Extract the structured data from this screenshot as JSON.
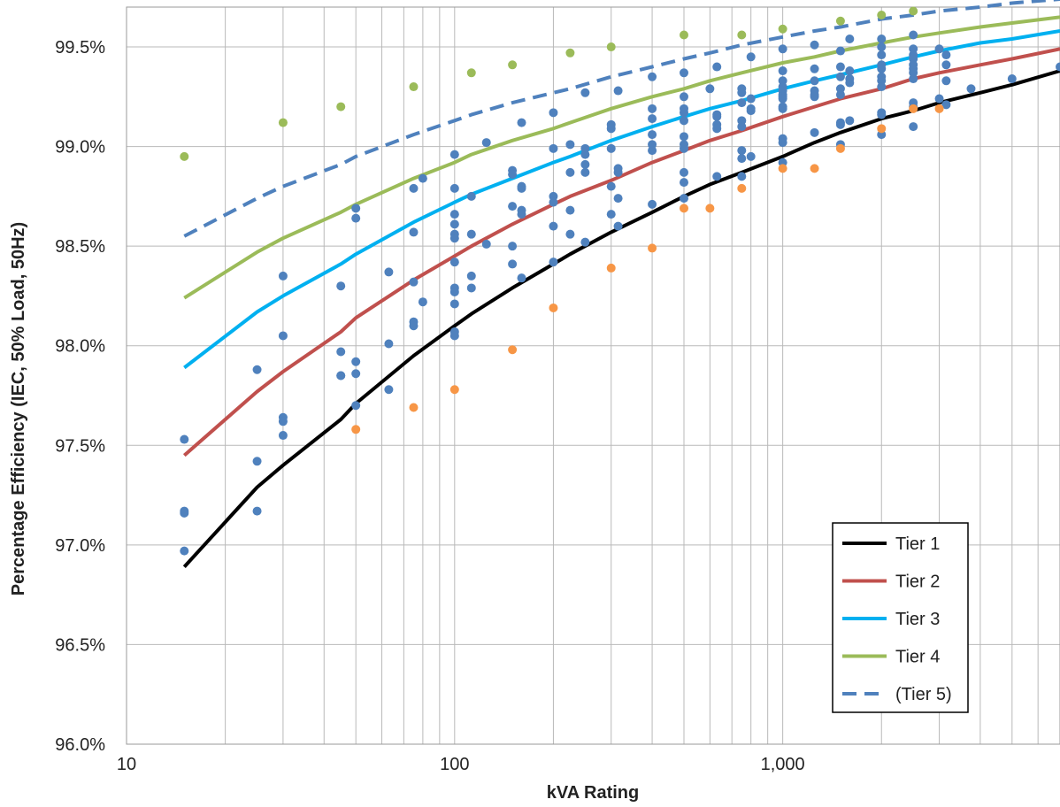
{
  "chart_data": {
    "type": "scatter",
    "xlabel": "kVA Rating",
    "ylabel": "Percentage Efficiency (IEC, 50% Load, 50Hz)",
    "xscale": "log",
    "xlim": [
      10,
      7000
    ],
    "ylim": [
      96.0,
      99.7
    ],
    "grid": "on",
    "legend_position": "bottom-right",
    "x_ticks": [
      10,
      100,
      1000
    ],
    "x_tick_labels": [
      "10",
      "100",
      "1,000"
    ],
    "y_ticks": [
      96.0,
      96.5,
      97.0,
      97.5,
      98.0,
      98.5,
      99.0,
      99.5
    ],
    "y_tick_labels": [
      "96.0%",
      "96.5%",
      "97.0%",
      "97.5%",
      "98.0%",
      "98.5%",
      "99.0%",
      "99.5%"
    ],
    "curve_x": [
      15,
      25,
      30,
      45,
      50,
      75,
      100,
      112.5,
      150,
      200,
      225,
      300,
      400,
      500,
      600,
      750,
      1000,
      1250,
      1500,
      2000,
      2500,
      3000,
      4000,
      5000,
      7000
    ],
    "series": [
      {
        "name": "Tier 1",
        "type": "line",
        "color": "#000000",
        "dash": false,
        "y": [
          96.89,
          97.29,
          97.4,
          97.63,
          97.71,
          97.95,
          98.1,
          98.16,
          98.29,
          98.41,
          98.46,
          98.57,
          98.67,
          98.75,
          98.81,
          98.87,
          98.95,
          99.02,
          99.07,
          99.14,
          99.18,
          99.22,
          99.27,
          99.31,
          99.38
        ]
      },
      {
        "name": "Tier 2",
        "type": "line",
        "color": "#c0504d",
        "dash": false,
        "y": [
          97.45,
          97.77,
          97.87,
          98.07,
          98.14,
          98.33,
          98.45,
          98.5,
          98.61,
          98.71,
          98.75,
          98.83,
          98.92,
          98.98,
          99.03,
          99.08,
          99.15,
          99.2,
          99.24,
          99.29,
          99.34,
          99.37,
          99.41,
          99.44,
          99.49
        ]
      },
      {
        "name": "Tier 3",
        "type": "line",
        "color": "#00b0f0",
        "dash": false,
        "y": [
          97.89,
          98.17,
          98.25,
          98.41,
          98.46,
          98.62,
          98.72,
          98.76,
          98.84,
          98.92,
          98.95,
          99.03,
          99.1,
          99.15,
          99.19,
          99.23,
          99.29,
          99.33,
          99.36,
          99.41,
          99.45,
          99.48,
          99.52,
          99.54,
          99.58
        ]
      },
      {
        "name": "Tier 4",
        "type": "line",
        "color": "#9bbb59",
        "dash": false,
        "y": [
          98.24,
          98.47,
          98.54,
          98.67,
          98.71,
          98.84,
          98.92,
          98.96,
          99.03,
          99.09,
          99.12,
          99.19,
          99.25,
          99.29,
          99.33,
          99.37,
          99.42,
          99.45,
          99.48,
          99.52,
          99.55,
          99.57,
          99.6,
          99.62,
          99.65
        ]
      },
      {
        "name": "(Tier 5)",
        "type": "line",
        "color": "#4f81bd",
        "dash": true,
        "y": [
          98.55,
          98.74,
          98.8,
          98.91,
          98.95,
          99.06,
          99.13,
          99.16,
          99.22,
          99.27,
          99.29,
          99.35,
          99.4,
          99.44,
          99.47,
          99.51,
          99.55,
          99.58,
          99.6,
          99.64,
          99.66,
          99.68,
          99.7,
          99.72,
          99.74
        ]
      }
    ],
    "scatter_series": [
      {
        "color": "#4f81bd",
        "points": [
          [
            15,
            97.53
          ],
          [
            15,
            97.16
          ],
          [
            15,
            97.17
          ],
          [
            15,
            96.97
          ],
          [
            25,
            97.88
          ],
          [
            25,
            97.42
          ],
          [
            25,
            97.17
          ],
          [
            30,
            98.35
          ],
          [
            30,
            98.05
          ],
          [
            30,
            97.64
          ],
          [
            30,
            97.62
          ],
          [
            30,
            97.55
          ],
          [
            45,
            98.3
          ],
          [
            45,
            97.97
          ],
          [
            45,
            97.85
          ],
          [
            45,
            97.85
          ],
          [
            50,
            98.69
          ],
          [
            50,
            98.64
          ],
          [
            50,
            97.92
          ],
          [
            50,
            97.86
          ],
          [
            50,
            97.7
          ],
          [
            63,
            98.37
          ],
          [
            63,
            98.01
          ],
          [
            63,
            97.78
          ],
          [
            75,
            98.79
          ],
          [
            75,
            98.57
          ],
          [
            75,
            98.32
          ],
          [
            75,
            98.12
          ],
          [
            75,
            98.1
          ],
          [
            80,
            98.84
          ],
          [
            80,
            98.22
          ],
          [
            100,
            98.96
          ],
          [
            100,
            98.79
          ],
          [
            100,
            98.66
          ],
          [
            100,
            98.61
          ],
          [
            100,
            98.56
          ],
          [
            100,
            98.54
          ],
          [
            100,
            98.42
          ],
          [
            100,
            98.29
          ],
          [
            100,
            98.27
          ],
          [
            100,
            98.21
          ],
          [
            100,
            98.07
          ],
          [
            100,
            98.05
          ],
          [
            112.5,
            98.75
          ],
          [
            112.5,
            98.56
          ],
          [
            112.5,
            98.35
          ],
          [
            112.5,
            98.29
          ],
          [
            125,
            99.02
          ],
          [
            125,
            98.51
          ],
          [
            150,
            98.88
          ],
          [
            150,
            98.86
          ],
          [
            150,
            98.7
          ],
          [
            150,
            98.5
          ],
          [
            150,
            98.41
          ],
          [
            160,
            99.12
          ],
          [
            160,
            98.8
          ],
          [
            160,
            98.79
          ],
          [
            160,
            98.68
          ],
          [
            160,
            98.66
          ],
          [
            160,
            98.34
          ],
          [
            200,
            99.17
          ],
          [
            200,
            98.99
          ],
          [
            200,
            98.75
          ],
          [
            200,
            98.72
          ],
          [
            200,
            98.6
          ],
          [
            200,
            98.42
          ],
          [
            225,
            99.01
          ],
          [
            225,
            98.87
          ],
          [
            225,
            98.68
          ],
          [
            225,
            98.56
          ],
          [
            250,
            99.27
          ],
          [
            250,
            98.99
          ],
          [
            250,
            98.96
          ],
          [
            250,
            98.91
          ],
          [
            250,
            98.87
          ],
          [
            250,
            98.52
          ],
          [
            300,
            99.11
          ],
          [
            300,
            99.09
          ],
          [
            300,
            98.99
          ],
          [
            300,
            98.8
          ],
          [
            300,
            98.66
          ],
          [
            315,
            99.28
          ],
          [
            315,
            98.89
          ],
          [
            315,
            98.87
          ],
          [
            315,
            98.74
          ],
          [
            315,
            98.6
          ],
          [
            400,
            99.35
          ],
          [
            400,
            99.19
          ],
          [
            400,
            99.14
          ],
          [
            400,
            99.06
          ],
          [
            400,
            99.01
          ],
          [
            400,
            98.98
          ],
          [
            400,
            98.71
          ],
          [
            500,
            99.37
          ],
          [
            500,
            99.25
          ],
          [
            500,
            99.19
          ],
          [
            500,
            99.17
          ],
          [
            500,
            99.13
          ],
          [
            500,
            99.05
          ],
          [
            500,
            99.01
          ],
          [
            500,
            98.99
          ],
          [
            500,
            98.87
          ],
          [
            500,
            98.82
          ],
          [
            500,
            98.74
          ],
          [
            600,
            99.29
          ],
          [
            630,
            99.4
          ],
          [
            630,
            99.16
          ],
          [
            630,
            99.15
          ],
          [
            630,
            99.11
          ],
          [
            630,
            99.09
          ],
          [
            630,
            98.85
          ],
          [
            750,
            99.29
          ],
          [
            750,
            99.27
          ],
          [
            750,
            99.22
          ],
          [
            750,
            99.13
          ],
          [
            750,
            99.1
          ],
          [
            750,
            98.98
          ],
          [
            750,
            98.94
          ],
          [
            750,
            98.85
          ],
          [
            800,
            99.45
          ],
          [
            800,
            99.24
          ],
          [
            800,
            99.19
          ],
          [
            800,
            99.18
          ],
          [
            800,
            98.95
          ],
          [
            1000,
            99.49
          ],
          [
            1000,
            99.38
          ],
          [
            1000,
            99.33
          ],
          [
            1000,
            99.3
          ],
          [
            1000,
            99.28
          ],
          [
            1000,
            99.26
          ],
          [
            1000,
            99.25
          ],
          [
            1000,
            99.24
          ],
          [
            1000,
            99.2
          ],
          [
            1000,
            99.19
          ],
          [
            1000,
            99.04
          ],
          [
            1000,
            99.02
          ],
          [
            1000,
            98.92
          ],
          [
            1250,
            99.51
          ],
          [
            1250,
            99.39
          ],
          [
            1250,
            99.33
          ],
          [
            1250,
            99.28
          ],
          [
            1250,
            99.26
          ],
          [
            1250,
            99.25
          ],
          [
            1250,
            99.07
          ],
          [
            1500,
            99.48
          ],
          [
            1500,
            99.4
          ],
          [
            1500,
            99.35
          ],
          [
            1500,
            99.29
          ],
          [
            1500,
            99.26
          ],
          [
            1500,
            99.12
          ],
          [
            1500,
            99.11
          ],
          [
            1500,
            99.01
          ],
          [
            1600,
            99.54
          ],
          [
            1600,
            99.38
          ],
          [
            1600,
            99.34
          ],
          [
            1600,
            99.32
          ],
          [
            1600,
            99.13
          ],
          [
            2000,
            99.54
          ],
          [
            2000,
            99.5
          ],
          [
            2000,
            99.46
          ],
          [
            2000,
            99.41
          ],
          [
            2000,
            99.39
          ],
          [
            2000,
            99.35
          ],
          [
            2000,
            99.33
          ],
          [
            2000,
            99.3
          ],
          [
            2000,
            99.17
          ],
          [
            2000,
            99.16
          ],
          [
            2000,
            99.06
          ],
          [
            2500,
            99.56
          ],
          [
            2500,
            99.49
          ],
          [
            2500,
            99.46
          ],
          [
            2500,
            99.44
          ],
          [
            2500,
            99.41
          ],
          [
            2500,
            99.39
          ],
          [
            2500,
            99.37
          ],
          [
            2500,
            99.34
          ],
          [
            2500,
            99.22
          ],
          [
            2500,
            99.2
          ],
          [
            2500,
            99.1
          ],
          [
            3000,
            99.49
          ],
          [
            3000,
            99.24
          ],
          [
            3150,
            99.46
          ],
          [
            3150,
            99.41
          ],
          [
            3150,
            99.33
          ],
          [
            3150,
            99.21
          ],
          [
            3750,
            99.29
          ],
          [
            5000,
            99.34
          ],
          [
            7000,
            99.4
          ]
        ]
      },
      {
        "color": "#9bbb59",
        "points": [
          [
            15,
            98.95
          ],
          [
            30,
            99.12
          ],
          [
            45,
            99.2
          ],
          [
            75,
            99.3
          ],
          [
            112.5,
            99.37
          ],
          [
            150,
            99.41
          ],
          [
            225,
            99.47
          ],
          [
            300,
            99.5
          ],
          [
            500,
            99.56
          ],
          [
            750,
            99.56
          ],
          [
            1000,
            99.59
          ],
          [
            1500,
            99.63
          ],
          [
            2000,
            99.66
          ],
          [
            2500,
            99.68
          ]
        ]
      },
      {
        "color": "#f79646",
        "points": [
          [
            50,
            97.58
          ],
          [
            75,
            97.69
          ],
          [
            100,
            97.78
          ],
          [
            150,
            97.98
          ],
          [
            200,
            98.19
          ],
          [
            300,
            98.39
          ],
          [
            400,
            98.49
          ],
          [
            500,
            98.69
          ],
          [
            600,
            98.69
          ],
          [
            750,
            98.79
          ],
          [
            1000,
            98.89
          ],
          [
            1250,
            98.89
          ],
          [
            1500,
            98.99
          ],
          [
            2000,
            99.09
          ],
          [
            2500,
            99.19
          ],
          [
            3000,
            99.19
          ]
        ]
      }
    ]
  }
}
